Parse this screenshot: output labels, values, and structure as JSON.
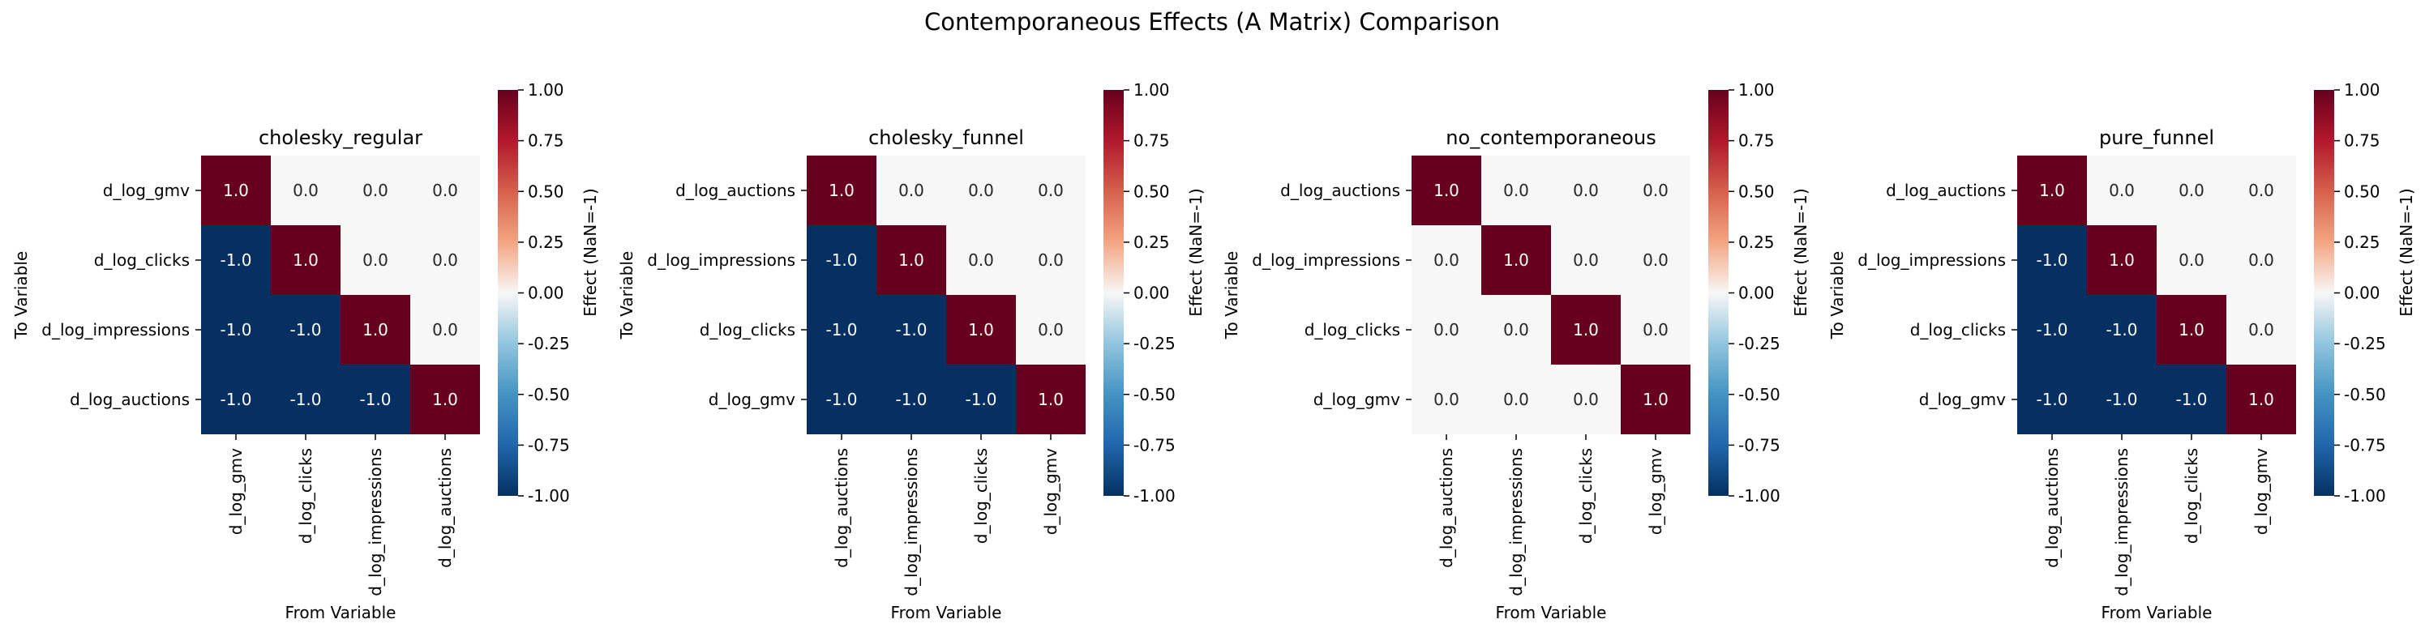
{
  "figure": {
    "suptitle": "Contemporaneous Effects (A Matrix) Comparison"
  },
  "chart_data": [
    {
      "type": "heatmap",
      "title": "cholesky_regular",
      "xlabel": "From Variable",
      "ylabel": "To Variable",
      "x_categories": [
        "d_log_gmv",
        "d_log_clicks",
        "d_log_impressions",
        "d_log_auctions"
      ],
      "y_categories": [
        "d_log_gmv",
        "d_log_clicks",
        "d_log_impressions",
        "d_log_auctions"
      ],
      "values": [
        [
          1.0,
          0.0,
          0.0,
          0.0
        ],
        [
          -1.0,
          1.0,
          0.0,
          0.0
        ],
        [
          -1.0,
          -1.0,
          1.0,
          0.0
        ],
        [
          -1.0,
          -1.0,
          -1.0,
          1.0
        ]
      ],
      "value_labels": [
        [
          "1.0",
          "0.0",
          "0.0",
          "0.0"
        ],
        [
          "-1.0",
          "1.0",
          "0.0",
          "0.0"
        ],
        [
          "-1.0",
          "-1.0",
          "1.0",
          "0.0"
        ],
        [
          "-1.0",
          "-1.0",
          "-1.0",
          "1.0"
        ]
      ],
      "colorbar": {
        "label": "Effect (NaN=-1)",
        "range": [
          -1.0,
          1.0
        ],
        "ticks": [
          "1.00",
          "0.75",
          "0.50",
          "0.25",
          "0.00",
          "-0.25",
          "-0.50",
          "-0.75",
          "-1.00"
        ],
        "colormap": "RdBu_r"
      }
    },
    {
      "type": "heatmap",
      "title": "cholesky_funnel",
      "xlabel": "From Variable",
      "ylabel": "To Variable",
      "x_categories": [
        "d_log_auctions",
        "d_log_impressions",
        "d_log_clicks",
        "d_log_gmv"
      ],
      "y_categories": [
        "d_log_auctions",
        "d_log_impressions",
        "d_log_clicks",
        "d_log_gmv"
      ],
      "values": [
        [
          1.0,
          0.0,
          0.0,
          0.0
        ],
        [
          -1.0,
          1.0,
          0.0,
          0.0
        ],
        [
          -1.0,
          -1.0,
          1.0,
          0.0
        ],
        [
          -1.0,
          -1.0,
          -1.0,
          1.0
        ]
      ],
      "value_labels": [
        [
          "1.0",
          "0.0",
          "0.0",
          "0.0"
        ],
        [
          "-1.0",
          "1.0",
          "0.0",
          "0.0"
        ],
        [
          "-1.0",
          "-1.0",
          "1.0",
          "0.0"
        ],
        [
          "-1.0",
          "-1.0",
          "-1.0",
          "1.0"
        ]
      ],
      "colorbar": {
        "label": "Effect (NaN=-1)",
        "range": [
          -1.0,
          1.0
        ],
        "ticks": [
          "1.00",
          "0.75",
          "0.50",
          "0.25",
          "0.00",
          "-0.25",
          "-0.50",
          "-0.75",
          "-1.00"
        ],
        "colormap": "RdBu_r"
      }
    },
    {
      "type": "heatmap",
      "title": "no_contemporaneous",
      "xlabel": "From Variable",
      "ylabel": "To Variable",
      "x_categories": [
        "d_log_auctions",
        "d_log_impressions",
        "d_log_clicks",
        "d_log_gmv"
      ],
      "y_categories": [
        "d_log_auctions",
        "d_log_impressions",
        "d_log_clicks",
        "d_log_gmv"
      ],
      "values": [
        [
          1.0,
          0.0,
          0.0,
          0.0
        ],
        [
          0.0,
          1.0,
          0.0,
          0.0
        ],
        [
          0.0,
          0.0,
          1.0,
          0.0
        ],
        [
          0.0,
          0.0,
          0.0,
          1.0
        ]
      ],
      "value_labels": [
        [
          "1.0",
          "0.0",
          "0.0",
          "0.0"
        ],
        [
          "0.0",
          "1.0",
          "0.0",
          "0.0"
        ],
        [
          "0.0",
          "0.0",
          "1.0",
          "0.0"
        ],
        [
          "0.0",
          "0.0",
          "0.0",
          "1.0"
        ]
      ],
      "colorbar": {
        "label": "Effect (NaN=-1)",
        "range": [
          -1.0,
          1.0
        ],
        "ticks": [
          "1.00",
          "0.75",
          "0.50",
          "0.25",
          "0.00",
          "-0.25",
          "-0.50",
          "-0.75",
          "-1.00"
        ],
        "colormap": "RdBu_r"
      }
    },
    {
      "type": "heatmap",
      "title": "pure_funnel",
      "xlabel": "From Variable",
      "ylabel": "To Variable",
      "x_categories": [
        "d_log_auctions",
        "d_log_impressions",
        "d_log_clicks",
        "d_log_gmv"
      ],
      "y_categories": [
        "d_log_auctions",
        "d_log_impressions",
        "d_log_clicks",
        "d_log_gmv"
      ],
      "values": [
        [
          1.0,
          0.0,
          0.0,
          0.0
        ],
        [
          -1.0,
          1.0,
          0.0,
          0.0
        ],
        [
          -1.0,
          -1.0,
          1.0,
          0.0
        ],
        [
          -1.0,
          -1.0,
          -1.0,
          1.0
        ]
      ],
      "value_labels": [
        [
          "1.0",
          "0.0",
          "0.0",
          "0.0"
        ],
        [
          "-1.0",
          "1.0",
          "0.0",
          "0.0"
        ],
        [
          "-1.0",
          "-1.0",
          "1.0",
          "0.0"
        ],
        [
          "-1.0",
          "-1.0",
          "-1.0",
          "1.0"
        ]
      ],
      "colorbar": {
        "label": "Effect (NaN=-1)",
        "range": [
          -1.0,
          1.0
        ],
        "ticks": [
          "1.00",
          "0.75",
          "0.50",
          "0.25",
          "0.00",
          "-0.25",
          "-0.50",
          "-0.75",
          "-1.00"
        ],
        "colormap": "RdBu_r"
      }
    }
  ]
}
